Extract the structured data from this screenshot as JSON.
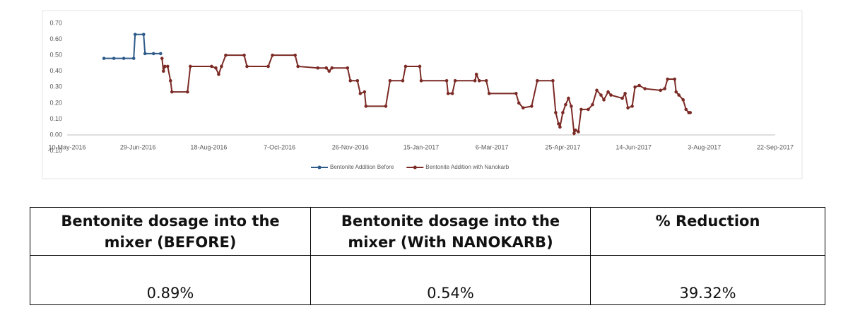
{
  "chart_data": {
    "type": "line",
    "xlim": [
      "2016-05-10",
      "2017-09-22"
    ],
    "xticks": [
      {
        "value": "2016-05-10",
        "label": "10-May-2016"
      },
      {
        "value": "2016-06-29",
        "label": "29-Jun-2016"
      },
      {
        "value": "2016-08-18",
        "label": "18-Aug-2016"
      },
      {
        "value": "2016-10-07",
        "label": "7-Oct-2016"
      },
      {
        "value": "2016-11-26",
        "label": "26-Nov-2016"
      },
      {
        "value": "2017-01-15",
        "label": "15-Jan-2017"
      },
      {
        "value": "2017-03-06",
        "label": "6-Mar-2017"
      },
      {
        "value": "2017-04-25",
        "label": "25-Apr-2017"
      },
      {
        "value": "2017-06-14",
        "label": "14-Jun-2017"
      },
      {
        "value": "2017-08-03",
        "label": "3-Aug-2017"
      },
      {
        "value": "2017-09-22",
        "label": "22-Sep-2017"
      }
    ],
    "ylim": [
      -0.1,
      0.7
    ],
    "yticks": [
      {
        "value": -0.1,
        "label": "-0.10"
      },
      {
        "value": 0,
        "label": "0.00"
      },
      {
        "value": 0.1,
        "label": "0.10"
      },
      {
        "value": 0.2,
        "label": "0.20"
      },
      {
        "value": 0.3,
        "label": "0.30"
      },
      {
        "value": 0.4,
        "label": "0.40"
      },
      {
        "value": 0.5,
        "label": "0.50"
      },
      {
        "value": 0.6,
        "label": "0.60"
      },
      {
        "value": 0.7,
        "label": "0.70"
      }
    ],
    "grid": false,
    "legend": "bottom",
    "series": [
      {
        "name": "Bentonite Addition Before",
        "color": "#2e5b8a",
        "x": [
          "2016-06-05",
          "2016-06-12",
          "2016-06-19",
          "2016-06-26",
          "2016-06-27",
          "2016-07-03",
          "2016-07-04",
          "2016-07-10",
          "2016-07-15"
        ],
        "values": [
          0.48,
          0.48,
          0.48,
          0.48,
          0.63,
          0.63,
          0.51,
          0.51,
          0.51
        ]
      },
      {
        "name": "Bentonite Addition with Nanokarb",
        "color": "#7b2a25",
        "x": [
          "2016-07-16",
          "2016-07-17",
          "2016-07-18",
          "2016-07-20",
          "2016-07-22",
          "2016-07-23",
          "2016-08-03",
          "2016-08-05",
          "2016-08-20",
          "2016-08-23",
          "2016-08-25",
          "2016-08-27",
          "2016-08-30",
          "2016-09-12",
          "2016-09-14",
          "2016-09-29",
          "2016-10-02",
          "2016-10-18",
          "2016-10-20",
          "2016-11-03",
          "2016-11-09",
          "2016-11-11",
          "2016-11-13",
          "2016-11-24",
          "2016-11-26",
          "2016-12-01",
          "2016-12-03",
          "2016-12-06",
          "2016-12-07",
          "2016-12-21",
          "2016-12-24",
          "2017-01-02",
          "2017-01-04",
          "2017-01-14",
          "2017-01-15",
          "2017-02-02",
          "2017-02-03",
          "2017-02-06",
          "2017-02-08",
          "2017-02-22",
          "2017-02-23",
          "2017-02-25",
          "2017-03-02",
          "2017-03-04",
          "2017-03-23",
          "2017-03-25",
          "2017-03-28",
          "2017-04-03",
          "2017-04-07",
          "2017-04-18",
          "2017-04-20",
          "2017-04-22",
          "2017-04-23",
          "2017-04-25",
          "2017-04-27",
          "2017-04-29",
          "2017-05-01",
          "2017-05-03",
          "2017-05-04",
          "2017-05-06",
          "2017-05-08",
          "2017-05-13",
          "2017-05-16",
          "2017-05-19",
          "2017-05-22",
          "2017-05-24",
          "2017-05-27",
          "2017-05-29",
          "2017-06-06",
          "2017-06-08",
          "2017-06-10",
          "2017-06-13",
          "2017-06-15",
          "2017-06-18",
          "2017-06-22",
          "2017-07-03",
          "2017-07-06",
          "2017-07-08",
          "2017-07-13",
          "2017-07-14",
          "2017-07-16",
          "2017-07-19",
          "2017-07-21",
          "2017-07-23",
          "2017-07-24"
        ],
        "values": [
          0.48,
          0.4,
          0.43,
          0.43,
          0.34,
          0.27,
          0.27,
          0.43,
          0.43,
          0.42,
          0.38,
          0.43,
          0.5,
          0.5,
          0.43,
          0.43,
          0.5,
          0.5,
          0.43,
          0.42,
          0.42,
          0.4,
          0.42,
          0.42,
          0.34,
          0.34,
          0.26,
          0.27,
          0.18,
          0.18,
          0.34,
          0.34,
          0.43,
          0.43,
          0.34,
          0.34,
          0.26,
          0.26,
          0.34,
          0.34,
          0.38,
          0.34,
          0.34,
          0.26,
          0.26,
          0.2,
          0.17,
          0.18,
          0.34,
          0.34,
          0.14,
          0.07,
          0.05,
          0.14,
          0.19,
          0.23,
          0.18,
          0.01,
          0.03,
          0.02,
          0.16,
          0.16,
          0.19,
          0.28,
          0.25,
          0.22,
          0.27,
          0.25,
          0.23,
          0.26,
          0.17,
          0.18,
          0.3,
          0.31,
          0.29,
          0.28,
          0.29,
          0.35,
          0.35,
          0.27,
          0.25,
          0.22,
          0.16,
          0.14,
          0.14
        ]
      }
    ]
  },
  "table": {
    "headers": [
      "Bentonite dosage into the mixer (BEFORE)",
      "Bentonite dosage into the mixer (With NANOKARB)",
      "% Reduction"
    ],
    "rows": [
      [
        "0.89%",
        "0.54%",
        "39.32%"
      ]
    ]
  }
}
